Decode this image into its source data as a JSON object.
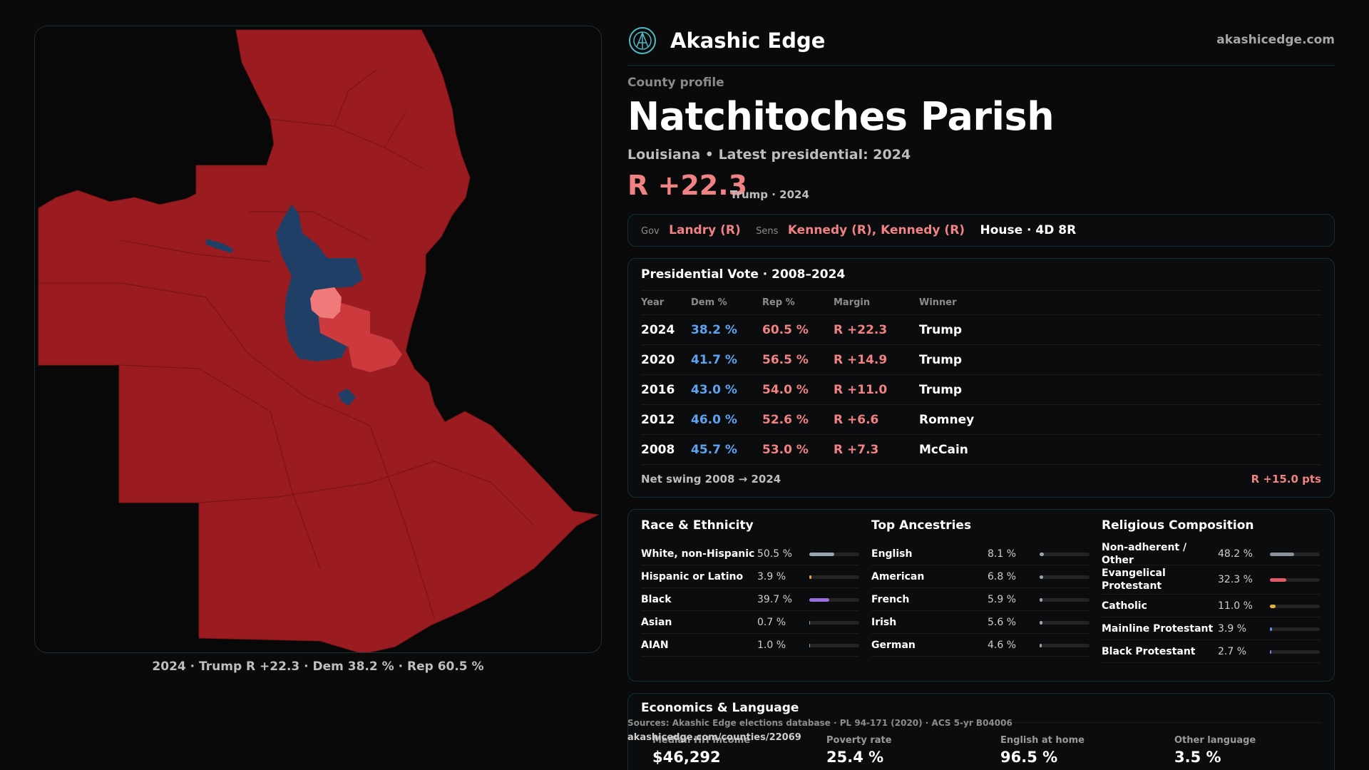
{
  "map": {
    "caption": "2024 · Trump R +22.3 · Dem 38.2 % · Rep 60.5 %",
    "colors": {
      "rep": "#9b1c20",
      "rep_light": "#e06060",
      "rep_pale": "#f07a7a",
      "dem": "#1f3f66"
    }
  },
  "header": {
    "brand": "Akashic Edge",
    "site": "akashicedge.com",
    "logo_icon": "akashic-logo-icon"
  },
  "profile": {
    "eyebrow": "County profile",
    "title": "Natchitoches Parish",
    "subtitle": "Louisiana • Latest presidential: 2024",
    "margin": "R +22.3",
    "margin_note": "Trump · 2024"
  },
  "officials": {
    "gov_label": "Gov",
    "gov_value": "Landry (R)",
    "sens_label": "Sens",
    "sens_value": "Kennedy (R), Kennedy (R)",
    "house": "House · 4D 8R"
  },
  "presidential": {
    "title": "Presidential Vote · 2008–2024",
    "headers": {
      "year": "Year",
      "dem": "Dem %",
      "rep": "Rep %",
      "margin": "Margin",
      "winner": "Winner"
    },
    "rows": [
      {
        "year": "2024",
        "dem": "38.2 %",
        "rep": "60.5 %",
        "margin": "R +22.3",
        "winner": "Trump"
      },
      {
        "year": "2020",
        "dem": "41.7 %",
        "rep": "56.5 %",
        "margin": "R +14.9",
        "winner": "Trump"
      },
      {
        "year": "2016",
        "dem": "43.0 %",
        "rep": "54.0 %",
        "margin": "R +11.0",
        "winner": "Trump"
      },
      {
        "year": "2012",
        "dem": "46.0 %",
        "rep": "52.6 %",
        "margin": "R +6.6",
        "winner": "Romney"
      },
      {
        "year": "2008",
        "dem": "45.7 %",
        "rep": "53.0 %",
        "margin": "R +7.3",
        "winner": "McCain"
      }
    ],
    "swing_label": "Net swing 2008 → 2024",
    "swing_value": "R +15.0 pts"
  },
  "race": {
    "title": "Race & Ethnicity",
    "items": [
      {
        "label": "White, non-Hispanic",
        "value": "50.5 %",
        "pct": 50.5,
        "color": "#9aa6b2"
      },
      {
        "label": "Hispanic or Latino",
        "value": "3.9 %",
        "pct": 3.9,
        "color": "#e8a23a"
      },
      {
        "label": "Black",
        "value": "39.7 %",
        "pct": 39.7,
        "color": "#9a6ee0"
      },
      {
        "label": "Asian",
        "value": "0.7 %",
        "pct": 0.7,
        "color": "#8fa0b0"
      },
      {
        "label": "AIAN",
        "value": "1.0 %",
        "pct": 1.0,
        "color": "#8fa0b0"
      }
    ]
  },
  "ancestry": {
    "title": "Top Ancestries",
    "items": [
      {
        "label": "English",
        "value": "8.1 %",
        "pct": 8.1,
        "color": "#9aa6b2"
      },
      {
        "label": "American",
        "value": "6.8 %",
        "pct": 6.8,
        "color": "#9aa6b2"
      },
      {
        "label": "French",
        "value": "5.9 %",
        "pct": 5.9,
        "color": "#9aa6b2"
      },
      {
        "label": "Irish",
        "value": "5.6 %",
        "pct": 5.6,
        "color": "#9aa6b2"
      },
      {
        "label": "German",
        "value": "4.6 %",
        "pct": 4.6,
        "color": "#9aa6b2"
      }
    ]
  },
  "religion": {
    "title": "Religious Composition",
    "items": [
      {
        "label": "Non-adherent / Other",
        "value": "48.2 %",
        "pct": 48.2,
        "color": "#8a929c"
      },
      {
        "label": "Evangelical Protestant",
        "value": "32.3 %",
        "pct": 32.3,
        "color": "#e05a68"
      },
      {
        "label": "Catholic",
        "value": "11.0 %",
        "pct": 11.0,
        "color": "#e8b23a"
      },
      {
        "label": "Mainline Protestant",
        "value": "3.9 %",
        "pct": 3.9,
        "color": "#5e8fe8"
      },
      {
        "label": "Black Protestant",
        "value": "2.7 %",
        "pct": 2.7,
        "color": "#9a6ee0"
      }
    ]
  },
  "economics": {
    "title": "Economics & Language",
    "stats": [
      {
        "label": "Median HH income",
        "value": "$46,292"
      },
      {
        "label": "Poverty rate",
        "value": "25.4 %"
      },
      {
        "label": "English at home",
        "value": "96.5 %"
      },
      {
        "label": "Other language",
        "value": "3.5 %"
      }
    ]
  },
  "footer": {
    "sources": "Sources: Akashic Edge elections database · PL 94-171 (2020) · ACS 5-yr B04006",
    "permalink": "akashicedge.com/counties/22069"
  }
}
